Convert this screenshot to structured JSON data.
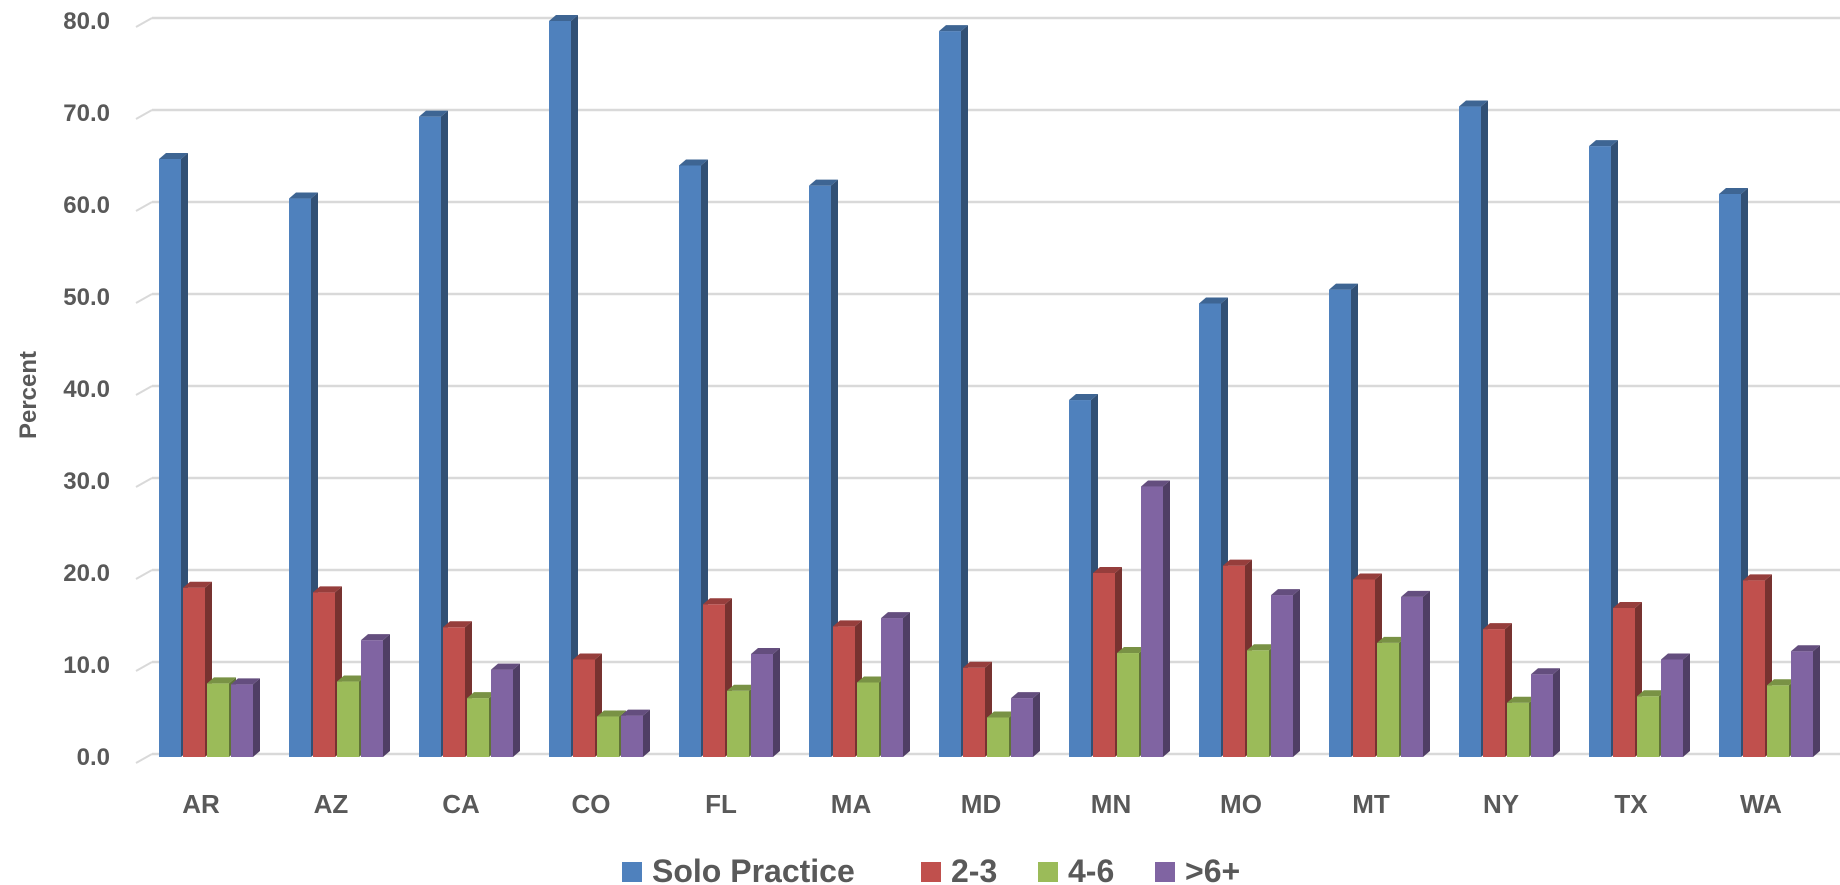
{
  "chart_data": {
    "type": "bar",
    "ylabel": "Percent",
    "ylim": [
      0,
      80
    ],
    "yticks": [
      "0.0",
      "10.0",
      "20.0",
      "30.0",
      "40.0",
      "50.0",
      "60.0",
      "70.0",
      "80.0"
    ],
    "grid": true,
    "legend_position": "bottom",
    "categories": [
      "AR",
      "AZ",
      "CA",
      "CO",
      "FL",
      "MA",
      "MD",
      "MN",
      "MO",
      "MT",
      "NY",
      "TX",
      "WA"
    ],
    "series": [
      {
        "name": "Solo Practice",
        "color": "#4F81BD",
        "values": [
          65.0,
          60.7,
          69.6,
          80.0,
          64.3,
          62.1,
          78.9,
          38.8,
          49.3,
          50.8,
          70.7,
          66.4,
          61.2
        ]
      },
      {
        "name": "2-3",
        "color": "#C0504D",
        "values": [
          18.4,
          17.9,
          14.1,
          10.6,
          16.6,
          14.2,
          9.7,
          20.0,
          20.8,
          19.3,
          13.9,
          16.2,
          19.2
        ]
      },
      {
        "name": "4-6",
        "color": "#9BBB59",
        "values": [
          8.0,
          8.2,
          6.4,
          4.4,
          7.2,
          8.1,
          4.3,
          11.3,
          11.6,
          12.4,
          5.9,
          6.6,
          7.8
        ]
      },
      {
        "name": ">6+",
        "color": "#8064A2",
        "values": [
          7.9,
          12.7,
          9.5,
          4.5,
          11.2,
          15.1,
          6.4,
          29.4,
          17.6,
          17.4,
          9.0,
          10.6,
          11.5
        ]
      }
    ]
  }
}
